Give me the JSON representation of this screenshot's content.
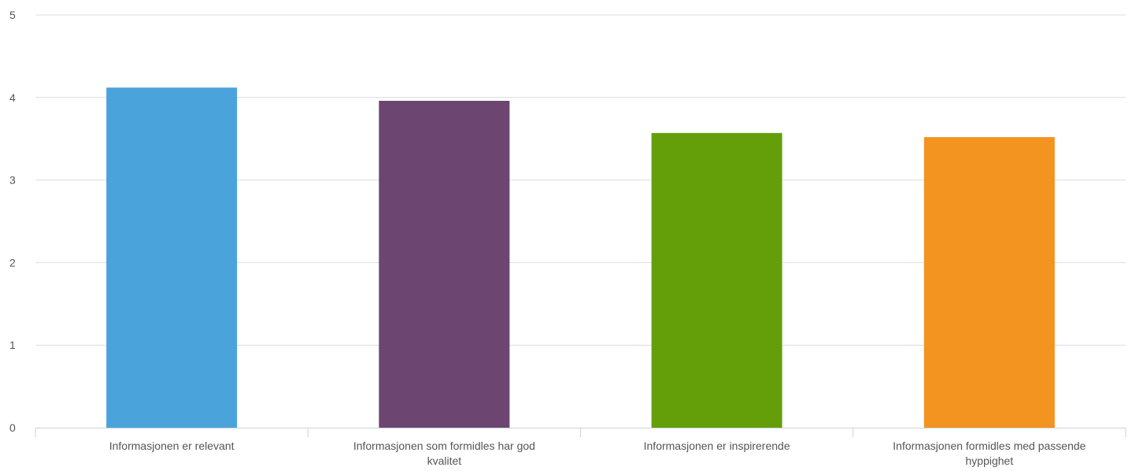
{
  "chart_data": {
    "type": "bar",
    "title": "",
    "xlabel": "",
    "ylabel": "",
    "categories": [
      [
        "Informasjonen er relevant"
      ],
      [
        "Informasjonen som formidles har god",
        "kvalitet"
      ],
      [
        "Informasjonen er inspirerende"
      ],
      [
        "Informasjonen formidles med passende",
        "hyppighet"
      ]
    ],
    "values": [
      4.12,
      3.96,
      3.57,
      3.52
    ],
    "colors": [
      "#4aa3db",
      "#6d4571",
      "#649f0a",
      "#f39320"
    ],
    "ylim": [
      0,
      5
    ],
    "yticks": [
      "0",
      "1",
      "2",
      "3",
      "4",
      "5"
    ],
    "grid": true,
    "legend": "none"
  }
}
